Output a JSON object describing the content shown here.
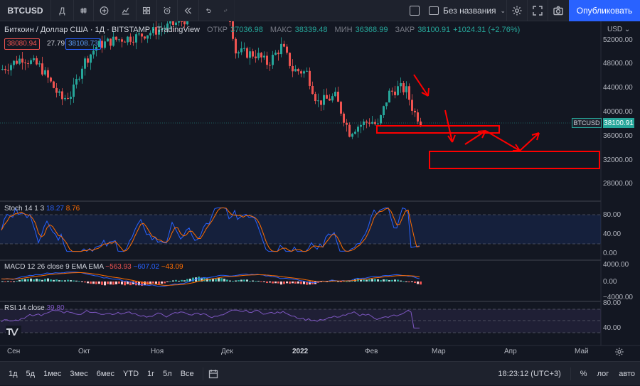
{
  "topbar": {
    "symbol": "BTCUSD",
    "interval": "Д",
    "layout_name": "Без названия",
    "publish_label": "Опубликовать"
  },
  "legend": {
    "title": "Биткоин / Доллар США · 1Д · BITSTAMP · TradingView",
    "open_label": "ОТКР",
    "open": "37036.98",
    "high_label": "МАКС",
    "high": "38339.48",
    "low_label": "МИН",
    "low": "36368.99",
    "close_label": "ЗАКР",
    "close": "38100.91",
    "change": "+1024.31 (+2.76%)",
    "bid": "38080.94",
    "spread": "27.79",
    "ask": "38108.73"
  },
  "price_scale": {
    "currency": "USD",
    "ticks": [
      "52000.00",
      "48000.00",
      "44000.00",
      "40000.00",
      "36000.00",
      "32000.00",
      "28000.00"
    ],
    "tag_symbol": "BTCUSD",
    "tag_price": "38100.91"
  },
  "stoch": {
    "label": "Stoch 14 1 3",
    "k": "18.27",
    "d": "8.76",
    "ticks": [
      "80.00",
      "40.00",
      "0.00"
    ]
  },
  "macd": {
    "label": "MACD 12 26 close 9 EMA EMA",
    "hist": "−563.93",
    "macd": "−607.02",
    "signal": "−43.09",
    "ticks": [
      "4000.00",
      "0.00",
      "−4000.00"
    ]
  },
  "rsi": {
    "label": "RSI 14 close",
    "value": "39.80",
    "ticks": [
      "80.00",
      "40.00"
    ]
  },
  "time_axis": [
    "Сен",
    "Окт",
    "Ноя",
    "Дек",
    "2022",
    "Фев",
    "Мар",
    "Апр",
    "Май"
  ],
  "bottombar": {
    "ranges": [
      "1д",
      "5д",
      "1мес",
      "3мес",
      "6мес",
      "YTD",
      "1г",
      "5л",
      "Все"
    ],
    "clock": "18:23:12 (UTC+3)",
    "percent": "%",
    "log": "лог",
    "auto": "авто"
  },
  "colors": {
    "up": "#26a69a",
    "down": "#ef5350",
    "accent": "#2962ff",
    "drawing": "#ff0000"
  }
}
